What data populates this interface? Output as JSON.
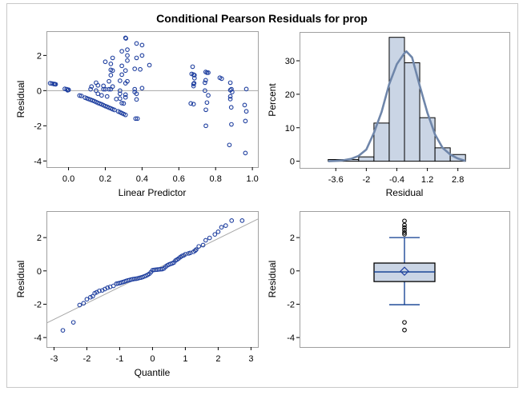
{
  "title": "Conditional Pearson Residuals for prop",
  "colors": {
    "marker": "#1f3f9f",
    "bar_fill": "#cad5e5",
    "curve": "#6f86aa",
    "reference_line": "#a8a8a8",
    "frame": "#a0a0a0",
    "whisker": "#0b3a8f"
  },
  "chart_data": [
    {
      "type": "scatter",
      "xlabel": "Linear Predictor",
      "ylabel": "Residual",
      "xlim": [
        -0.12,
        1.03
      ],
      "ylim": [
        -4.35,
        3.38
      ],
      "xticks": [
        "0.0",
        "0.2",
        "0.4",
        "0.6",
        "0.8",
        "1.0"
      ],
      "yticks": [
        "-4",
        "-2",
        "0",
        "2"
      ],
      "reference_line_y": 0,
      "points": [
        [
          -0.1,
          0.42
        ],
        [
          -0.09,
          0.4
        ],
        [
          -0.08,
          0.38
        ],
        [
          -0.07,
          0.36
        ],
        [
          -0.075,
          0.37
        ],
        [
          -0.02,
          0.1
        ],
        [
          -0.01,
          0.08
        ],
        [
          0.0,
          0.05
        ],
        [
          -0.005,
          0.02
        ],
        [
          0.0,
          0.04
        ],
        [
          0.06,
          -0.28
        ],
        [
          0.07,
          -0.3
        ],
        [
          0.09,
          -0.4
        ],
        [
          0.1,
          -0.44
        ],
        [
          0.11,
          -0.48
        ],
        [
          0.12,
          -0.52
        ],
        [
          0.13,
          -0.56
        ],
        [
          0.14,
          -0.6
        ],
        [
          0.15,
          -0.65
        ],
        [
          0.16,
          -0.7
        ],
        [
          0.17,
          -0.74
        ],
        [
          0.18,
          -0.78
        ],
        [
          0.19,
          -0.83
        ],
        [
          0.2,
          -0.88
        ],
        [
          0.21,
          -0.92
        ],
        [
          0.22,
          -0.97
        ],
        [
          0.23,
          -1.01
        ],
        [
          0.24,
          -1.06
        ],
        [
          0.25,
          -1.1
        ],
        [
          0.27,
          -1.18
        ],
        [
          0.28,
          -1.23
        ],
        [
          0.29,
          -1.28
        ],
        [
          0.3,
          -1.33
        ],
        [
          0.31,
          -1.38
        ],
        [
          0.125,
          0.23
        ],
        [
          0.12,
          0.08
        ],
        [
          0.15,
          0.45
        ],
        [
          0.15,
          0.0
        ],
        [
          0.16,
          0.3
        ],
        [
          0.16,
          -0.18
        ],
        [
          0.18,
          -0.27
        ],
        [
          0.19,
          0.08
        ],
        [
          0.19,
          0.27
        ],
        [
          0.2,
          1.64
        ],
        [
          0.2,
          0.08
        ],
        [
          0.21,
          -0.33
        ],
        [
          0.22,
          0.08
        ],
        [
          0.22,
          0.53
        ],
        [
          0.23,
          1.18
        ],
        [
          0.23,
          1.52
        ],
        [
          0.23,
          0.08
        ],
        [
          0.23,
          0.88
        ],
        [
          0.24,
          1.14
        ],
        [
          0.24,
          1.86
        ],
        [
          0.24,
          0.23
        ],
        [
          0.26,
          -0.48
        ],
        [
          0.28,
          0.56
        ],
        [
          0.28,
          0.0
        ],
        [
          0.28,
          -0.18
        ],
        [
          0.28,
          -0.45
        ],
        [
          0.29,
          -0.71
        ],
        [
          0.29,
          2.24
        ],
        [
          0.29,
          1.41
        ],
        [
          0.29,
          0.91
        ],
        [
          0.3,
          -0.73
        ],
        [
          0.31,
          3.0
        ],
        [
          0.312,
          2.97
        ],
        [
          0.31,
          1.14
        ],
        [
          0.31,
          0.42
        ],
        [
          0.32,
          2.0
        ],
        [
          0.32,
          1.71
        ],
        [
          0.32,
          0.53
        ],
        [
          0.31,
          -0.23
        ],
        [
          0.32,
          2.33
        ],
        [
          0.31,
          -0.38
        ],
        [
          0.36,
          0.08
        ],
        [
          0.36,
          1.24
        ],
        [
          0.37,
          1.86
        ],
        [
          0.37,
          -0.5
        ],
        [
          0.37,
          2.68
        ],
        [
          0.37,
          -0.18
        ],
        [
          0.365,
          -1.59
        ],
        [
          0.375,
          -1.59
        ],
        [
          0.39,
          1.21
        ],
        [
          0.4,
          2.59
        ],
        [
          0.4,
          2.0
        ],
        [
          0.4,
          0.14
        ],
        [
          0.44,
          1.45
        ],
        [
          0.36,
          -0.08
        ],
        [
          0.675,
          1.36
        ],
        [
          0.67,
          0.95
        ],
        [
          0.68,
          0.91
        ],
        [
          0.685,
          0.88
        ],
        [
          0.685,
          0.71
        ],
        [
          0.68,
          0.38
        ],
        [
          0.683,
          0.42
        ],
        [
          0.68,
          0.26
        ],
        [
          0.665,
          -0.73
        ],
        [
          0.68,
          -0.77
        ],
        [
          0.746,
          1.06
        ],
        [
          0.753,
          1.02
        ],
        [
          0.76,
          1.02
        ],
        [
          0.746,
          0.59
        ],
        [
          0.742,
          0.45
        ],
        [
          0.742,
          0.0
        ],
        [
          0.76,
          -0.27
        ],
        [
          0.753,
          -0.68
        ],
        [
          0.747,
          -1.09
        ],
        [
          0.747,
          -2.0
        ],
        [
          0.823,
          0.73
        ],
        [
          0.833,
          0.68
        ],
        [
          0.88,
          0.45
        ],
        [
          0.88,
          0.03
        ],
        [
          0.886,
          0.08
        ],
        [
          0.89,
          -0.08
        ],
        [
          0.88,
          -0.33
        ],
        [
          0.88,
          -0.48
        ],
        [
          0.885,
          -0.95
        ],
        [
          0.886,
          -1.92
        ],
        [
          0.875,
          -3.09
        ],
        [
          0.967,
          0.09
        ],
        [
          0.958,
          -0.82
        ],
        [
          0.967,
          -1.18
        ],
        [
          0.962,
          -1.73
        ],
        [
          0.962,
          -3.55
        ]
      ]
    },
    {
      "type": "bar",
      "xlabel": "Residual",
      "ylabel": "Percent",
      "xlim": [
        -5.5,
        5.5
      ],
      "ylim": [
        -2,
        38.6
      ],
      "xticks": [
        "-3.6",
        "-2",
        "-0.4",
        "1.2",
        "2.8"
      ],
      "yticks": [
        "0",
        "10",
        "20",
        "30"
      ],
      "bin_width": 0.8,
      "bin_centers": [
        -3.6,
        -2.8,
        -2.0,
        -1.2,
        -0.4,
        0.4,
        1.2,
        2.0,
        2.8
      ],
      "values": [
        0.5,
        0.5,
        1.3,
        11.4,
        37.0,
        29.4,
        13.0,
        4.0,
        2.0
      ],
      "density_curve": [
        [
          -4.0,
          0
        ],
        [
          -3.6,
          0.1
        ],
        [
          -3.2,
          0.3
        ],
        [
          -2.8,
          0.7
        ],
        [
          -2.4,
          1.6
        ],
        [
          -2.0,
          3.5
        ],
        [
          -1.6,
          8.5
        ],
        [
          -1.2,
          14.7
        ],
        [
          -0.8,
          23.0
        ],
        [
          -0.4,
          29.0
        ],
        [
          0.0,
          32.3
        ],
        [
          0.1,
          32.8
        ],
        [
          0.4,
          31.0
        ],
        [
          0.8,
          22.5
        ],
        [
          1.2,
          14.5
        ],
        [
          1.6,
          8.0
        ],
        [
          2.0,
          4.0
        ],
        [
          2.4,
          2.0
        ],
        [
          2.8,
          0.8
        ],
        [
          3.2,
          0.1
        ]
      ]
    },
    {
      "type": "scatter",
      "xlabel": "Quantile",
      "ylabel": "Residual",
      "xlim": [
        -3.23,
        3.21
      ],
      "ylim": [
        -4.57,
        3.59
      ],
      "xticks": [
        "-3",
        "-2",
        "-1",
        "0",
        "1",
        "2",
        "3"
      ],
      "yticks": [
        "-4",
        "-2",
        "0",
        "2"
      ],
      "reference_line": {
        "intercept": 0,
        "slope": 0.97
      },
      "points": [
        [
          -2.73,
          -3.57
        ],
        [
          -2.41,
          -3.09
        ],
        [
          -2.22,
          -2.05
        ],
        [
          -2.1,
          -1.94
        ],
        [
          -2.0,
          -1.7
        ],
        [
          -1.89,
          -1.58
        ],
        [
          -1.82,
          -1.52
        ],
        [
          -1.76,
          -1.34
        ],
        [
          -1.7,
          -1.28
        ],
        [
          -1.62,
          -1.2
        ],
        [
          -1.53,
          -1.17
        ],
        [
          -1.45,
          -1.09
        ],
        [
          -1.37,
          -1.01
        ],
        [
          -1.29,
          -0.96
        ],
        [
          -1.19,
          -0.9
        ],
        [
          -1.1,
          -0.77
        ],
        [
          -1.05,
          -0.75
        ],
        [
          -1.0,
          -0.73
        ],
        [
          -0.95,
          -0.7
        ],
        [
          -0.9,
          -0.67
        ],
        [
          -0.85,
          -0.64
        ],
        [
          -0.8,
          -0.6
        ],
        [
          -0.75,
          -0.57
        ],
        [
          -0.7,
          -0.55
        ],
        [
          -0.65,
          -0.52
        ],
        [
          -0.6,
          -0.5
        ],
        [
          -0.55,
          -0.48
        ],
        [
          -0.5,
          -0.47
        ],
        [
          -0.45,
          -0.45
        ],
        [
          -0.4,
          -0.42
        ],
        [
          -0.35,
          -0.4
        ],
        [
          -0.3,
          -0.37
        ],
        [
          -0.25,
          -0.33
        ],
        [
          -0.2,
          -0.29
        ],
        [
          -0.15,
          -0.24
        ],
        [
          -0.1,
          -0.18
        ],
        [
          -0.05,
          -0.08
        ],
        [
          0.0,
          0.04
        ],
        [
          0.05,
          0.06
        ],
        [
          0.1,
          0.07
        ],
        [
          0.15,
          0.08
        ],
        [
          0.2,
          0.09
        ],
        [
          0.25,
          0.1
        ],
        [
          0.3,
          0.11
        ],
        [
          0.35,
          0.15
        ],
        [
          0.4,
          0.25
        ],
        [
          0.45,
          0.33
        ],
        [
          0.5,
          0.38
        ],
        [
          0.55,
          0.42
        ],
        [
          0.6,
          0.45
        ],
        [
          0.65,
          0.5
        ],
        [
          0.7,
          0.62
        ],
        [
          0.75,
          0.68
        ],
        [
          0.8,
          0.75
        ],
        [
          0.85,
          0.83
        ],
        [
          0.9,
          0.9
        ],
        [
          0.95,
          0.93
        ],
        [
          1.0,
          1.0
        ],
        [
          1.1,
          1.05
        ],
        [
          1.15,
          1.08
        ],
        [
          1.25,
          1.15
        ],
        [
          1.3,
          1.22
        ],
        [
          1.33,
          1.28
        ],
        [
          1.41,
          1.47
        ],
        [
          1.54,
          1.55
        ],
        [
          1.62,
          1.84
        ],
        [
          1.74,
          1.98
        ],
        [
          1.9,
          2.19
        ],
        [
          2.0,
          2.35
        ],
        [
          2.1,
          2.62
        ],
        [
          2.23,
          2.72
        ],
        [
          2.41,
          3.02
        ],
        [
          2.73,
          3.02
        ]
      ]
    },
    {
      "type": "box",
      "ylabel": "Residual",
      "ylim": [
        -4.57,
        3.59
      ],
      "yticks": [
        "-4",
        "-2",
        "0",
        "2"
      ],
      "q1": -0.64,
      "median": -0.06,
      "q3": 0.47,
      "mean": -0.02,
      "whisker_low": -2.03,
      "whisker_high": 2.0,
      "outliers": [
        2.2,
        2.3,
        2.45,
        2.6,
        2.75,
        3.0,
        -3.09,
        -3.55
      ]
    }
  ]
}
